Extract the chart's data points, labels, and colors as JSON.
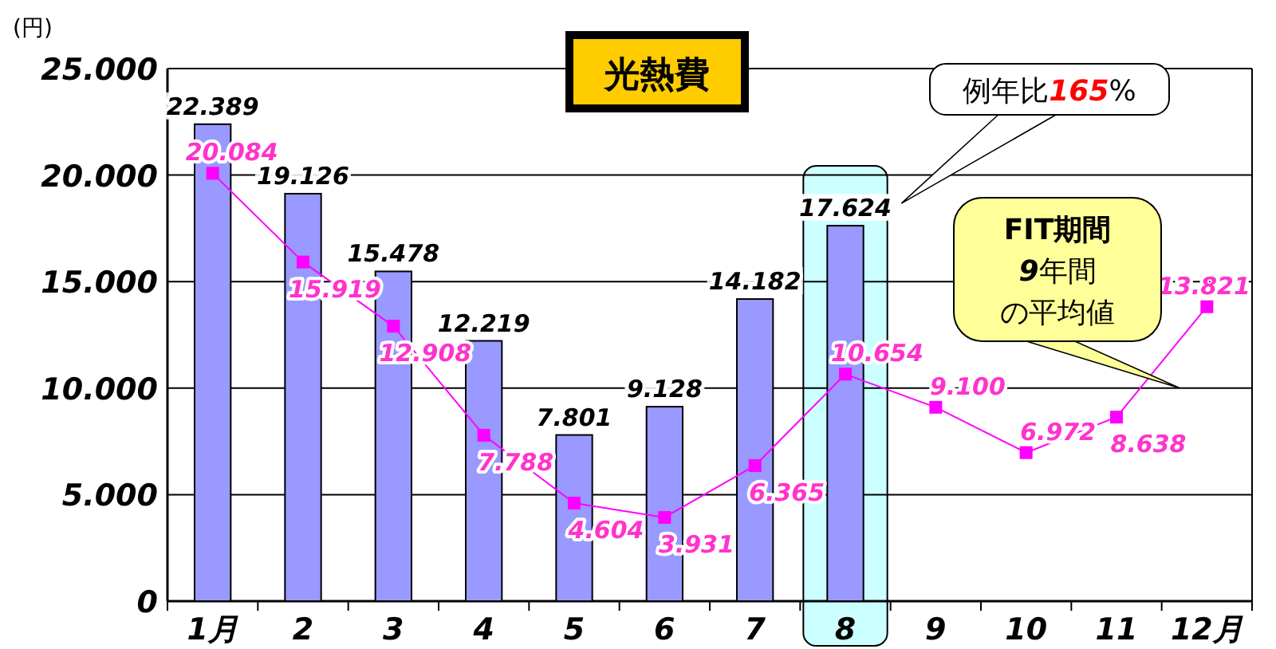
{
  "chart_data": {
    "type": "bar",
    "title": "光熱費",
    "ylabel": "(円)",
    "categories": [
      "1月",
      "2",
      "3",
      "4",
      "5",
      "6",
      "7",
      "8",
      "9",
      "10",
      "11",
      "12月"
    ],
    "series": [
      {
        "color": "#9999ff",
        "values": [
          22389,
          19126,
          15478,
          12219,
          7801,
          9128,
          14182,
          17624,
          null,
          null,
          null,
          null
        ],
        "value_labels": [
          "22.389",
          "19.126",
          "15.478",
          "12.219",
          "7.801",
          "9.128",
          "14.182",
          "17.624",
          null,
          null,
          null,
          null
        ]
      },
      {
        "type": "line",
        "color": "#ff00ff",
        "marker": "square",
        "values": [
          20084,
          15919,
          12908,
          7788,
          4604,
          3931,
          6365,
          10654,
          9100,
          6972,
          8638,
          13821
        ],
        "value_labels": [
          "20.084",
          "15.919",
          "12.908",
          "7.788",
          "4.604",
          "3.931",
          "6.365",
          "10.654",
          "9.100",
          "6.972",
          "8.638",
          "13.821"
        ]
      }
    ],
    "ylim": [
      0,
      25000
    ],
    "yticks": [
      {
        "value": 0,
        "label": "0"
      },
      {
        "value": 5000,
        "label": "5.000"
      },
      {
        "value": 10000,
        "label": "10.000"
      },
      {
        "value": 15000,
        "label": "15.000"
      },
      {
        "value": 20000,
        "label": "20.000"
      },
      {
        "value": 25000,
        "label": "25.000"
      }
    ],
    "grid": "y",
    "bands": [
      {
        "axis": "x",
        "from": "8",
        "to": "8",
        "color": "#ccffff"
      }
    ],
    "annotations": [
      "例年比165%",
      "FIT期間",
      "9年間",
      "の平均値"
    ]
  }
}
